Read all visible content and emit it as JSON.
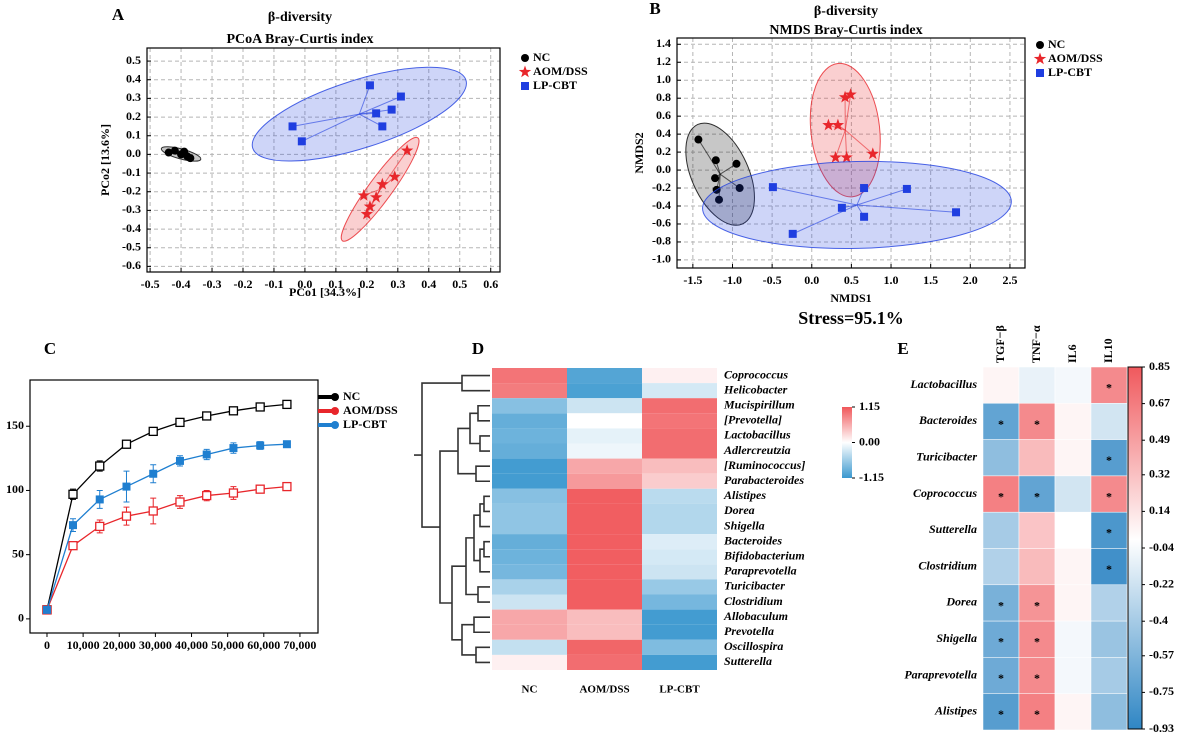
{
  "chart_data": [
    {
      "type": "scatter",
      "panel": "A",
      "title": "β-diversity",
      "subtitle": "PCoA Bray-Curtis index",
      "xlabel": "PCo1 [34.3%]",
      "ylabel": "PCo2 [13.6%]",
      "xlim": [
        -0.51,
        0.63
      ],
      "ylim": [
        -0.63,
        0.57
      ],
      "xticks": [
        -0.5,
        -0.4,
        -0.3,
        -0.2,
        -0.1,
        {
          "value": 0,
          "label": "0.0"
        },
        0.1,
        0.2,
        0.3,
        0.4,
        0.5,
        0.6
      ],
      "yticks": [
        -0.6,
        -0.5,
        -0.4,
        -0.3,
        -0.2,
        -0.1,
        {
          "value": 0,
          "label": "0.0"
        },
        0.1,
        0.2,
        0.3,
        0.4,
        0.5
      ],
      "grid": true,
      "series": [
        {
          "name": "NC",
          "color": "#000000",
          "marker": "circle",
          "x": [
            -0.44,
            -0.42,
            -0.4,
            -0.39,
            -0.38,
            -0.37
          ],
          "values": [
            0.01,
            0.02,
            0.0,
            0.015,
            -0.01,
            -0.02
          ]
        },
        {
          "name": "AOM/DSS",
          "color": "#e8262b",
          "marker": "star",
          "x": [
            0.33,
            0.29,
            0.25,
            0.23,
            0.19,
            0.21,
            0.2
          ],
          "values": [
            0.02,
            -0.12,
            -0.16,
            -0.23,
            -0.22,
            -0.28,
            -0.32
          ]
        },
        {
          "name": "LP-CBT",
          "color": "#1f3ee0",
          "marker": "square",
          "x": [
            0.21,
            0.31,
            0.28,
            0.23,
            0.25,
            -0.04,
            -0.01
          ],
          "values": [
            0.37,
            0.31,
            0.24,
            0.22,
            0.15,
            0.15,
            0.07
          ]
        }
      ]
    },
    {
      "type": "scatter",
      "panel": "B",
      "title": "β-diversity",
      "subtitle": "NMDS Bray-Curtis index",
      "xlabel": "NMDS1",
      "ylabel": "NMDS2",
      "annotation": "Stress=95.1%",
      "xlim": [
        -1.7,
        2.69
      ],
      "ylim": [
        -1.09,
        1.47
      ],
      "xticks": [
        -1.5,
        {
          "value": -1,
          "label": "-1.0"
        },
        -0.5,
        {
          "value": 0,
          "label": "0.0"
        },
        0.5,
        {
          "value": 1,
          "label": "1.0"
        },
        1.5,
        {
          "value": 2,
          "label": "2.0"
        },
        2.5
      ],
      "yticks": [
        {
          "value": -1,
          "label": "-1.0"
        },
        -0.8,
        -0.6,
        -0.4,
        -0.2,
        {
          "value": 0,
          "label": "0.0"
        },
        0.2,
        0.4,
        0.6,
        0.8,
        {
          "value": 1,
          "label": "1.0"
        },
        1.2,
        1.4
      ],
      "grid": true,
      "series": [
        {
          "name": "NC",
          "color": "#000000",
          "marker": "circle",
          "x": [
            -1.43,
            -1.21,
            -0.95,
            -1.22,
            -0.91,
            -1.2,
            -1.17
          ],
          "values": [
            0.34,
            0.11,
            0.07,
            -0.09,
            -0.2,
            -0.22,
            -0.33
          ]
        },
        {
          "name": "AOM/DSS",
          "color": "#e8262b",
          "marker": "star",
          "x": [
            0.42,
            0.49,
            0.21,
            0.33,
            0.3,
            0.44,
            0.77
          ],
          "values": [
            0.81,
            0.84,
            0.5,
            0.5,
            0.14,
            0.14,
            0.18
          ]
        },
        {
          "name": "LP-CBT",
          "color": "#1f3ee0",
          "marker": "square",
          "x": [
            -0.49,
            0.66,
            1.2,
            0.38,
            0.66,
            1.82,
            -0.24
          ],
          "values": [
            -0.19,
            -0.2,
            -0.21,
            -0.42,
            -0.52,
            -0.47,
            -0.71
          ]
        }
      ]
    },
    {
      "type": "line",
      "panel": "C",
      "x": [
        0,
        7200,
        14600,
        22000,
        29400,
        36800,
        44200,
        51600,
        59000,
        66400
      ],
      "xlim": [
        -4700,
        75000
      ],
      "ylim": [
        -11,
        186
      ],
      "xticks": [
        0,
        {
          "value": 10000,
          "label": "10,000"
        },
        {
          "value": 20000,
          "label": "20,000"
        },
        {
          "value": 30000,
          "label": "30,000"
        },
        {
          "value": 40000,
          "label": "40,000"
        },
        {
          "value": 50000,
          "label": "50,000"
        },
        {
          "value": 60000,
          "label": "60,000"
        },
        {
          "value": 70000,
          "label": "70,000"
        }
      ],
      "yticks": [
        0,
        50,
        100,
        150
      ],
      "series": [
        {
          "name": "NC",
          "color": "#000000",
          "marker": "open-square",
          "values": [
            7,
            97,
            119,
            136,
            146,
            153,
            158,
            162,
            165,
            167
          ],
          "errors": [
            0,
            4,
            4,
            3,
            2,
            2,
            2,
            2,
            2,
            1
          ]
        },
        {
          "name": "AOM/DSS",
          "color": "#e8262b",
          "marker": "open-square",
          "values": [
            7,
            57,
            72,
            80,
            84,
            91,
            96,
            98,
            101,
            103
          ],
          "errors": [
            0,
            3,
            5,
            7,
            10,
            5,
            4,
            5,
            3,
            2
          ]
        },
        {
          "name": "LP-CBT",
          "color": "#1f7fd0",
          "marker": "square",
          "values": [
            7,
            73,
            93,
            103,
            113,
            123,
            128,
            133,
            135,
            136
          ],
          "errors": [
            0,
            5,
            7,
            12,
            7,
            4,
            4,
            4,
            3,
            2
          ]
        }
      ]
    },
    {
      "type": "heatmap",
      "panel": "D",
      "columns": [
        "NC",
        "AOM/DSS",
        "LP-CBT"
      ],
      "rows": [
        "Coprococcus",
        "Helicobacter",
        "Mucispirillum",
        "[Prevotella]",
        "Lactobacillus",
        "Adlercreutzia",
        "[Ruminococcus]",
        "Parabacteroides",
        "Alistipes",
        "Dorea",
        "Shigella",
        "Bacteroides",
        "Bifidobacterium",
        "Paraprevotella",
        "Turicibacter",
        "Clostridium",
        "Allobaculum",
        "Prevotella",
        "Oscillospira",
        "Sutterella"
      ],
      "values": [
        [
          0.95,
          -1.0,
          0.1
        ],
        [
          0.9,
          -1.05,
          -0.25
        ],
        [
          -0.7,
          -0.3,
          1.0
        ],
        [
          -0.9,
          0.0,
          0.95
        ],
        [
          -0.85,
          -0.15,
          1.0
        ],
        [
          -0.9,
          -0.1,
          1.0
        ],
        [
          -1.1,
          0.6,
          0.45
        ],
        [
          -1.1,
          0.7,
          0.35
        ],
        [
          -0.7,
          1.1,
          -0.4
        ],
        [
          -0.65,
          1.1,
          -0.45
        ],
        [
          -0.65,
          1.1,
          -0.45
        ],
        [
          -0.9,
          1.1,
          -0.2
        ],
        [
          -0.85,
          1.1,
          -0.25
        ],
        [
          -0.8,
          1.1,
          -0.3
        ],
        [
          -0.5,
          1.1,
          -0.6
        ],
        [
          -0.3,
          1.1,
          -0.8
        ],
        [
          0.6,
          0.45,
          -1.1
        ],
        [
          0.6,
          0.45,
          -1.1
        ],
        [
          -0.35,
          1.05,
          -0.75
        ],
        [
          0.1,
          1.0,
          -1.1
        ]
      ],
      "clim": [
        -1.15,
        1.15
      ],
      "colors": [
        "#3a98cf",
        "#ffffff",
        "#f0575a"
      ],
      "cticks": [
        1.15,
        {
          "value": 0,
          "label": "0.00"
        },
        -1.15
      ]
    },
    {
      "type": "heatmap",
      "panel": "E",
      "columns": [
        "TGF−β",
        "TNF−α",
        "IL6",
        "IL10"
      ],
      "rows": [
        "Lactobacillus",
        "Bacteroides",
        "Turicibacter",
        "Coprococcus",
        "Sutterella",
        "Clostridium",
        "Dorea",
        "Shigella",
        "Paraprevotella",
        "Alistipes"
      ],
      "values": [
        [
          0.05,
          -0.1,
          -0.05,
          0.6
        ],
        [
          -0.7,
          0.6,
          0.05,
          -0.2
        ],
        [
          -0.5,
          0.35,
          0.05,
          -0.75
        ],
        [
          0.65,
          -0.7,
          -0.2,
          0.6
        ],
        [
          -0.4,
          0.3,
          0.0,
          -0.8
        ],
        [
          -0.35,
          0.35,
          0.05,
          -0.85
        ],
        [
          -0.6,
          0.55,
          0.05,
          -0.35
        ],
        [
          -0.65,
          0.6,
          -0.05,
          -0.45
        ],
        [
          -0.65,
          0.6,
          -0.05,
          -0.4
        ],
        [
          -0.75,
          0.65,
          0.05,
          -0.5
        ]
      ],
      "annotations": [
        [
          null,
          null,
          null,
          "*"
        ],
        [
          "*",
          "*",
          null,
          null
        ],
        [
          null,
          null,
          null,
          "*"
        ],
        [
          "*",
          "*",
          null,
          "*"
        ],
        [
          null,
          null,
          null,
          "*"
        ],
        [
          null,
          null,
          null,
          "*"
        ],
        [
          "*",
          "*",
          null,
          null
        ],
        [
          "*",
          "*",
          null,
          null
        ],
        [
          "*",
          "*",
          null,
          null
        ],
        [
          "*",
          "*",
          null,
          null
        ]
      ],
      "clim": [
        -0.93,
        0.85
      ],
      "colors": [
        "#2f86c4",
        "#ffffff",
        "#f0595d"
      ],
      "cticks": [
        0.85,
        0.67,
        0.49,
        0.32,
        0.14,
        -0.04,
        -0.22,
        -0.4,
        -0.57,
        -0.75,
        -0.93
      ]
    }
  ]
}
